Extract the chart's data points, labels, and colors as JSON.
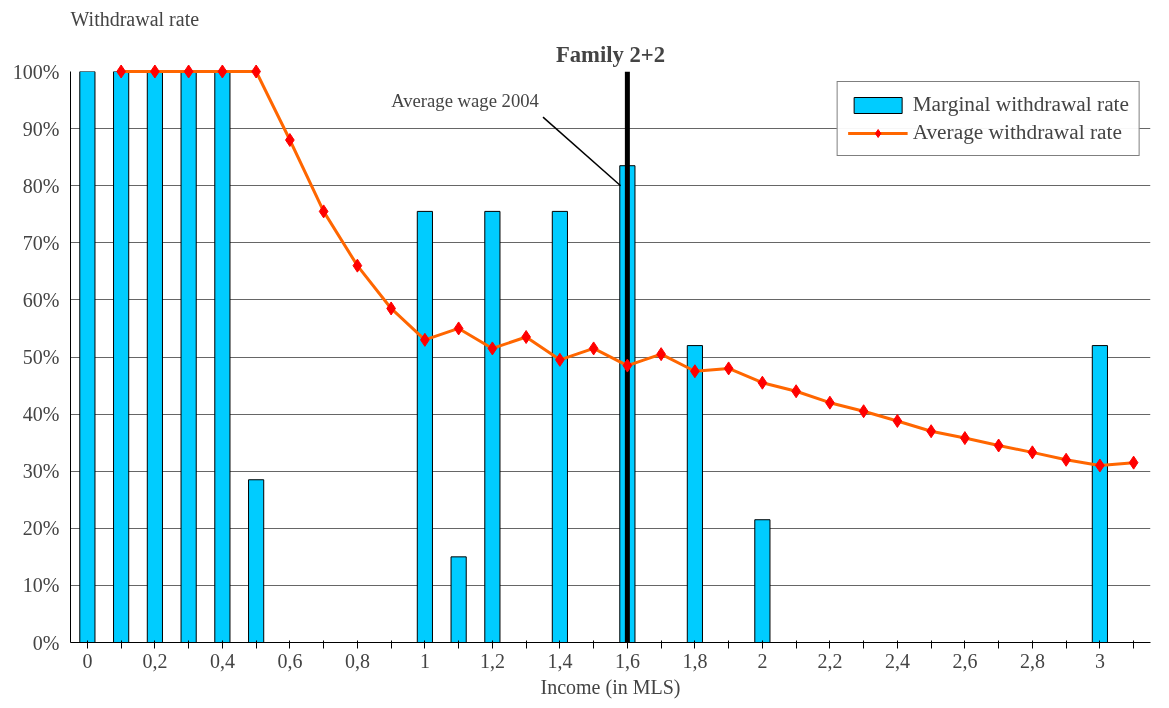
{
  "chart_data": {
    "type": "bar",
    "title": "Family 2+2",
    "xlabel": "Income (in MLS)",
    "ylabel": "Withdrawal rate",
    "categories": [
      "0",
      null,
      "0,2",
      null,
      "0,4",
      null,
      "0,6",
      null,
      "0,8",
      null,
      "1",
      null,
      "1,2",
      null,
      "1,4",
      null,
      "1,6",
      null,
      "1,8",
      null,
      "2",
      null,
      "2,2",
      null,
      "2,4",
      null,
      "2,6",
      null,
      "2,8",
      null,
      "3",
      null
    ],
    "series": [
      {
        "name": "Marginal withdrawal rate",
        "color": "#00ccff",
        "values": [
          100,
          100,
          100,
          100,
          100,
          28.5,
          null,
          null,
          null,
          null,
          75.5,
          15,
          75.5,
          null,
          75.5,
          null,
          83.5,
          null,
          52,
          null,
          21.5,
          null,
          null,
          null,
          null,
          null,
          null,
          null,
          null,
          null,
          52,
          null
        ]
      },
      {
        "name": "Average withdrawal rate",
        "type": "line",
        "color": "#ff6600",
        "marker": "diamond",
        "values": [
          null,
          100,
          100,
          100,
          100,
          100,
          88,
          75.5,
          66,
          58.5,
          53,
          55,
          51.5,
          53.5,
          49.5,
          51.5,
          48.5,
          50.5,
          47.5,
          48,
          45.5,
          44,
          42,
          40.5,
          38.8,
          37,
          35.8,
          34.5,
          33.3,
          32,
          31,
          31.5
        ]
      }
    ],
    "ylim": [
      0,
      100
    ],
    "yticks": [
      {
        "value": 0,
        "label": "0%"
      },
      {
        "value": 10,
        "label": "10%"
      },
      {
        "value": 20,
        "label": "20%"
      },
      {
        "value": 30,
        "label": "30%"
      },
      {
        "value": 40,
        "label": "40%"
      },
      {
        "value": 50,
        "label": "50%"
      },
      {
        "value": 60,
        "label": "60%"
      },
      {
        "value": 70,
        "label": "70%"
      },
      {
        "value": 80,
        "label": "80%"
      },
      {
        "value": 90,
        "label": "90%"
      },
      {
        "value": 100,
        "label": "100%"
      }
    ],
    "grid": "y",
    "legend": "top right",
    "ref_lines": [
      {
        "axis": "x",
        "value": "1,6",
        "label": "Average wage 2004",
        "color": "#000000"
      }
    ]
  }
}
